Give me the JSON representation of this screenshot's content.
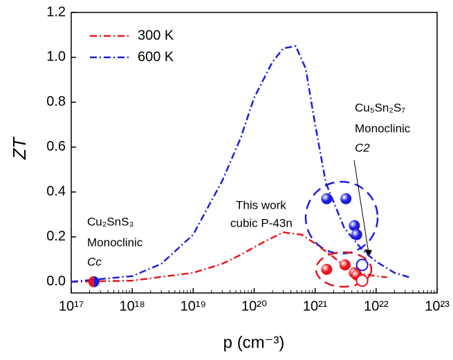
{
  "chart_data": {
    "type": "line",
    "xlabel": "p (cm⁻³)",
    "ylabel": "ZT",
    "xscale": "log",
    "xlim": [
      1e+17,
      1e+23
    ],
    "xticks": [
      {
        "value": 1e+17,
        "label": "10¹⁷"
      },
      {
        "value": 1e+18,
        "label": "10¹⁸"
      },
      {
        "value": 1e+19,
        "label": "10¹⁹"
      },
      {
        "value": 1e+20,
        "label": "10²⁰"
      },
      {
        "value": 1e+21,
        "label": "10²¹"
      },
      {
        "value": 1e+22,
        "label": "10²²"
      },
      {
        "value": 1e+23,
        "label": "10²³"
      }
    ],
    "ylim": [
      -0.05,
      1.2
    ],
    "yticks": [
      {
        "value": 0,
        "label": "0.0"
      },
      0.2,
      0.4,
      0.6,
      0.8,
      {
        "value": 1,
        "label": "1.0"
      },
      1.2
    ],
    "legend": "upper left",
    "series": [
      {
        "name": "300 K",
        "color": "#e8141c",
        "x": [
          1e+17,
          1e+18,
          1e+19,
          3e+19,
          6e+19,
          1.5e+20,
          3e+20,
          6e+20,
          1e+21,
          2e+21,
          3e+21,
          6e+21,
          1e+22,
          1.5e+22
        ],
        "values": [
          0,
          0.005,
          0.04,
          0.08,
          0.12,
          0.18,
          0.22,
          0.21,
          0.17,
          0.11,
          0.07,
          0.035,
          0.025,
          0.02
        ]
      },
      {
        "name": "600 K",
        "color": "#1c1ce0",
        "x": [
          1e+17,
          1e+18,
          3e+18,
          1e+19,
          3e+19,
          6e+19,
          1e+20,
          2e+20,
          3e+20,
          4.8e+20,
          7e+20,
          1e+21,
          1.5e+21,
          3e+21,
          6e+21,
          1e+22,
          2e+22,
          3.5e+22
        ],
        "values": [
          0,
          0.025,
          0.08,
          0.21,
          0.45,
          0.64,
          0.82,
          0.98,
          1.04,
          1.05,
          0.95,
          0.7,
          0.44,
          0.24,
          0.14,
          0.09,
          0.04,
          0.02
        ]
      }
    ],
    "points": [
      {
        "color": "#e8141c",
        "marker": "filled",
        "x": [
          1.55e+21,
          3.1e+21,
          4.4e+21,
          4.8e+21
        ],
        "values": [
          0.055,
          0.075,
          0.04,
          0.03
        ]
      },
      {
        "color": "#e8141c",
        "marker": "open",
        "x": [
          5.9e+21
        ],
        "values": [
          0.005
        ]
      },
      {
        "color": "#1c1ce0",
        "marker": "filled",
        "x": [
          1.55e+21,
          3.2e+21,
          4.4e+21,
          4.8e+21
        ],
        "values": [
          0.37,
          0.37,
          0.25,
          0.21
        ]
      },
      {
        "color": "#1c1ce0",
        "marker": "open",
        "x": [
          5.9e+21
        ],
        "values": [
          0.075
        ]
      },
      {
        "color": "#e8141c",
        "marker": "left-half",
        "x": [
          2.35e+17
        ],
        "values": [
          0
        ]
      },
      {
        "color": "#1c1ce0",
        "marker": "right-half",
        "x": [
          2.35e+17
        ],
        "values": [
          0
        ]
      }
    ],
    "annotations": {
      "cu2sns3": [
        "Cu₂SnS₃",
        "Monoclinic",
        "Cc"
      ],
      "this_work": [
        "This work",
        "cubic P-43n"
      ],
      "cu5sn2s7": [
        "Cu₅Sn₂S₇",
        "Monoclinic",
        "C2"
      ]
    }
  }
}
